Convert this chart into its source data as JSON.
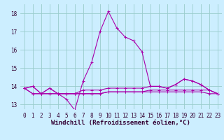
{
  "xlabel": "Windchill (Refroidissement éolien,°C)",
  "ylabel": "",
  "bg_color": "#cceeff",
  "grid_color": "#99cccc",
  "line_color": "#aa00aa",
  "xlim": [
    -0.5,
    23.5
  ],
  "ylim": [
    12.75,
    18.5
  ],
  "yticks": [
    13,
    14,
    15,
    16,
    17,
    18
  ],
  "xticks": [
    0,
    1,
    2,
    3,
    4,
    5,
    6,
    7,
    8,
    9,
    10,
    11,
    12,
    13,
    14,
    15,
    16,
    17,
    18,
    19,
    20,
    21,
    22,
    23
  ],
  "lines": [
    [
      13.9,
      14.0,
      13.6,
      13.9,
      13.6,
      13.3,
      12.7,
      14.3,
      15.3,
      17.0,
      18.1,
      17.2,
      16.7,
      16.5,
      15.9,
      14.0,
      14.0,
      13.9,
      14.1,
      14.4,
      14.3,
      14.1,
      13.8,
      13.6
    ],
    [
      13.9,
      14.0,
      13.6,
      13.9,
      13.6,
      13.6,
      13.6,
      13.8,
      13.8,
      13.8,
      13.9,
      13.9,
      13.9,
      13.9,
      13.9,
      14.0,
      14.0,
      13.9,
      14.1,
      14.4,
      14.3,
      14.1,
      13.8,
      13.6
    ],
    [
      13.9,
      13.6,
      13.6,
      13.6,
      13.6,
      13.6,
      13.6,
      13.6,
      13.6,
      13.6,
      13.7,
      13.7,
      13.7,
      13.7,
      13.7,
      13.8,
      13.8,
      13.8,
      13.8,
      13.8,
      13.8,
      13.8,
      13.8,
      13.6
    ],
    [
      13.9,
      13.6,
      13.6,
      13.6,
      13.6,
      13.6,
      13.6,
      13.6,
      13.6,
      13.6,
      13.7,
      13.7,
      13.7,
      13.7,
      13.7,
      13.7,
      13.7,
      13.7,
      13.7,
      13.7,
      13.7,
      13.7,
      13.6,
      13.6
    ]
  ],
  "marker": "+",
  "markersize": 3,
  "linewidth": 0.8,
  "tick_fontsize": 5.5,
  "xlabel_fontsize": 6.5
}
